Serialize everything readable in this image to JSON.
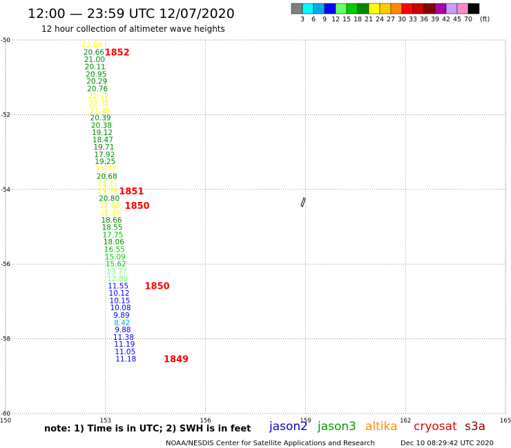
{
  "title": "12:00 — 23:59 UTC 12/07/2020",
  "subtitle": "12 hour collection of altimeter wave heights",
  "note": "note:  1) Time is in UTC;  2) SWH is in feet",
  "credit": "NOAA/NESDIS Center for Satellite Applications and Research",
  "generated": "Dec 10 08:29:42 UTC 2020",
  "legend": {
    "unit": "(ft)",
    "labels": [
      "3",
      "6",
      "9",
      "12",
      "15",
      "18",
      "21",
      "24",
      "27",
      "30",
      "33",
      "36",
      "39",
      "42",
      "45",
      "70"
    ],
    "colors": [
      "#808080",
      "#00ffff",
      "#00aaee",
      "#0000ff",
      "#66ff66",
      "#00cc00",
      "#008800",
      "#ffff00",
      "#ffcc00",
      "#ff8800",
      "#ff0000",
      "#cc0000",
      "#880000",
      "#aa00aa",
      "#cc99ff",
      "#ff88cc",
      "#000000"
    ]
  },
  "satellites": [
    {
      "name": "jason2",
      "color": "#0000cc"
    },
    {
      "name": "jason3",
      "color": "#009900"
    },
    {
      "name": "altika",
      "color": "#ff8800"
    },
    {
      "name": "cryosat",
      "color": "#ee0000"
    },
    {
      "name": "s3a",
      "color": "#880000"
    }
  ],
  "chart_data": {
    "type": "scatter",
    "x_ticks": [
      "150",
      "153",
      "156",
      "159",
      "162",
      "165"
    ],
    "y_ticks": [
      "-50",
      "-52",
      "-54",
      "-56",
      "-58",
      "-60"
    ],
    "xlim": [
      150,
      165
    ],
    "ylim": [
      -60,
      -50
    ],
    "grid": true,
    "wave_heights": [
      {
        "value": "22.06",
        "lon": 152.6,
        "lat": -50.12,
        "color": "#ffff00"
      },
      {
        "value": "20.66",
        "lon": 152.65,
        "lat": -50.32,
        "color": "#008800"
      },
      {
        "value": "21.00",
        "lon": 152.67,
        "lat": -50.52,
        "color": "#008800"
      },
      {
        "value": "20.11",
        "lon": 152.69,
        "lat": -50.71,
        "color": "#008800"
      },
      {
        "value": "20.95",
        "lon": 152.72,
        "lat": -50.91,
        "color": "#008800"
      },
      {
        "value": "20.29",
        "lon": 152.74,
        "lat": -51.1,
        "color": "#008800"
      },
      {
        "value": "20.76",
        "lon": 152.76,
        "lat": -51.3,
        "color": "#008800"
      },
      {
        "value": "22.22",
        "lon": 152.79,
        "lat": -51.49,
        "color": "#ffff00"
      },
      {
        "value": "22.31",
        "lon": 152.81,
        "lat": -51.69,
        "color": "#ffff00"
      },
      {
        "value": "21.49",
        "lon": 152.83,
        "lat": -51.89,
        "color": "#ffff00"
      },
      {
        "value": "20.39",
        "lon": 152.85,
        "lat": -52.08,
        "color": "#008800"
      },
      {
        "value": "20.38",
        "lon": 152.88,
        "lat": -52.28,
        "color": "#008800"
      },
      {
        "value": "19.12",
        "lon": 152.9,
        "lat": -52.47,
        "color": "#008800"
      },
      {
        "value": "18.47",
        "lon": 152.92,
        "lat": -52.67,
        "color": "#008800"
      },
      {
        "value": "19.71",
        "lon": 152.95,
        "lat": -52.86,
        "color": "#008800"
      },
      {
        "value": "17.92",
        "lon": 152.97,
        "lat": -53.06,
        "color": "#008800"
      },
      {
        "value": "19.25",
        "lon": 152.99,
        "lat": -53.25,
        "color": "#008800"
      },
      {
        "value": "21.77",
        "lon": 153.02,
        "lat": -53.45,
        "color": "#ffff00"
      },
      {
        "value": "20.68",
        "lon": 153.04,
        "lat": -53.64,
        "color": "#008800"
      },
      {
        "value": "21.71",
        "lon": 153.06,
        "lat": -53.84,
        "color": "#ffff00"
      },
      {
        "value": "21.70",
        "lon": 153.08,
        "lat": -54.04,
        "color": "#ffff00"
      },
      {
        "value": "20.80",
        "lon": 153.11,
        "lat": -54.23,
        "color": "#008800"
      },
      {
        "value": "22.08",
        "lon": 153.13,
        "lat": -54.43,
        "color": "#ffff00"
      },
      {
        "value": "21.36",
        "lon": 153.15,
        "lat": -54.62,
        "color": "#ffff00"
      },
      {
        "value": "18.66",
        "lon": 153.18,
        "lat": -54.82,
        "color": "#008800"
      },
      {
        "value": "18.55",
        "lon": 153.2,
        "lat": -55.01,
        "color": "#008800"
      },
      {
        "value": "17.75",
        "lon": 153.22,
        "lat": -55.21,
        "color": "#00cc00"
      },
      {
        "value": "18.06",
        "lon": 153.25,
        "lat": -55.4,
        "color": "#008800"
      },
      {
        "value": "16.55",
        "lon": 153.27,
        "lat": -55.6,
        "color": "#00cc00"
      },
      {
        "value": "15.09",
        "lon": 153.29,
        "lat": -55.8,
        "color": "#00cc00"
      },
      {
        "value": "15.62",
        "lon": 153.31,
        "lat": -55.99,
        "color": "#00cc00"
      },
      {
        "value": "13.77",
        "lon": 153.34,
        "lat": -56.19,
        "color": "#66ff66"
      },
      {
        "value": "12.89",
        "lon": 153.36,
        "lat": -56.38,
        "color": "#66ff66"
      },
      {
        "value": "11.55",
        "lon": 153.38,
        "lat": -56.58,
        "color": "#0000ff"
      },
      {
        "value": "10.12",
        "lon": 153.41,
        "lat": -56.77,
        "color": "#0000ff"
      },
      {
        "value": "10.15",
        "lon": 153.43,
        "lat": -56.97,
        "color": "#0000ff"
      },
      {
        "value": "10.08",
        "lon": 153.45,
        "lat": -57.16,
        "color": "#0000ff"
      },
      {
        "value": "9.89",
        "lon": 153.48,
        "lat": -57.36,
        "color": "#0000ff"
      },
      {
        "value": "8.42",
        "lon": 153.5,
        "lat": -57.56,
        "color": "#00aaee"
      },
      {
        "value": "9.88",
        "lon": 153.52,
        "lat": -57.75,
        "color": "#0000ff"
      },
      {
        "value": "11.38",
        "lon": 153.54,
        "lat": -57.95,
        "color": "#0000ff"
      },
      {
        "value": "11.19",
        "lon": 153.57,
        "lat": -58.14,
        "color": "#0000ff"
      },
      {
        "value": "11.05",
        "lon": 153.59,
        "lat": -58.34,
        "color": "#0000ff"
      },
      {
        "value": "11.18",
        "lon": 153.61,
        "lat": -58.53,
        "color": "#0000ff"
      }
    ],
    "times": [
      {
        "label": "1852",
        "lon": 153.35,
        "lat": -50.32
      },
      {
        "label": "1851",
        "lon": 153.78,
        "lat": -54.04
      },
      {
        "label": "1850",
        "lon": 153.95,
        "lat": -54.43
      },
      {
        "label": "1850",
        "lon": 154.55,
        "lat": -56.58
      },
      {
        "label": "1849",
        "lon": 155.12,
        "lat": -58.53
      }
    ]
  }
}
